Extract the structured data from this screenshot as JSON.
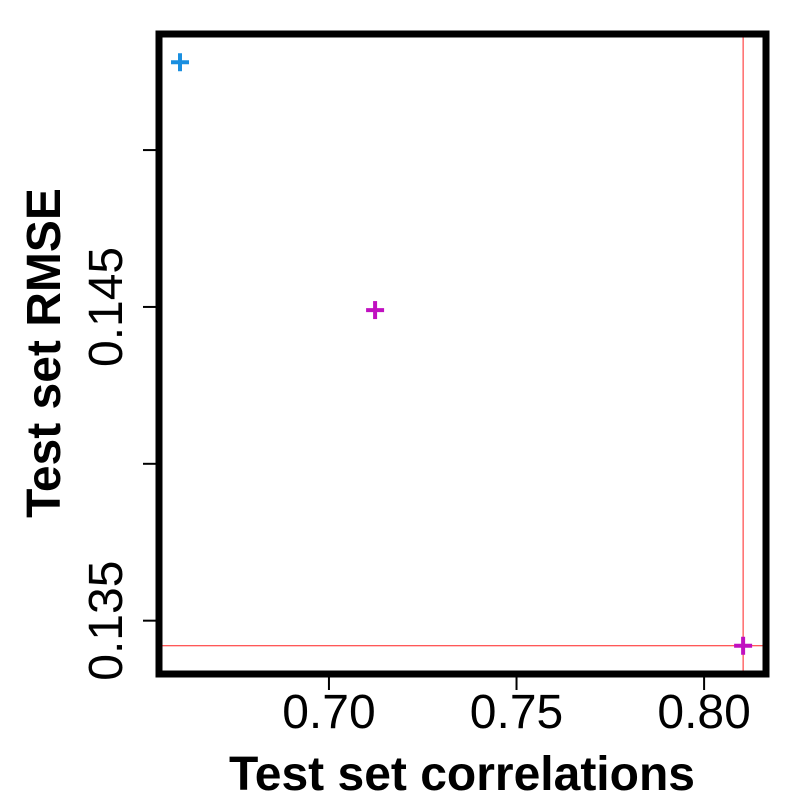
{
  "chart_data": {
    "type": "scatter",
    "title": "",
    "xlabel": "Test set correlations",
    "ylabel": "Test set RMSE",
    "xlim": [
      0.6547,
      0.8165
    ],
    "ylim": [
      0.1333,
      0.1537
    ],
    "x_ticks": [
      0.7,
      0.75,
      0.8
    ],
    "x_tick_labels": [
      "0.70",
      "0.75",
      "0.80"
    ],
    "y_ticks": [
      0.135,
      0.14,
      0.145,
      0.15
    ],
    "y_tick_labels": [
      "0.135",
      "",
      "0.145",
      ""
    ],
    "grid": false,
    "marker": "plus",
    "points": [
      {
        "x": 0.6603,
        "y": 0.1528,
        "color": "#1a8fe0"
      },
      {
        "x": 0.7123,
        "y": 0.1449,
        "color": "#c010c0"
      },
      {
        "x": 0.8104,
        "y": 0.1342,
        "color": "#c010c0"
      }
    ],
    "reference_lines": {
      "vertical_x": 0.8104,
      "horizontal_y": 0.1342,
      "color": "#ff2020"
    }
  }
}
